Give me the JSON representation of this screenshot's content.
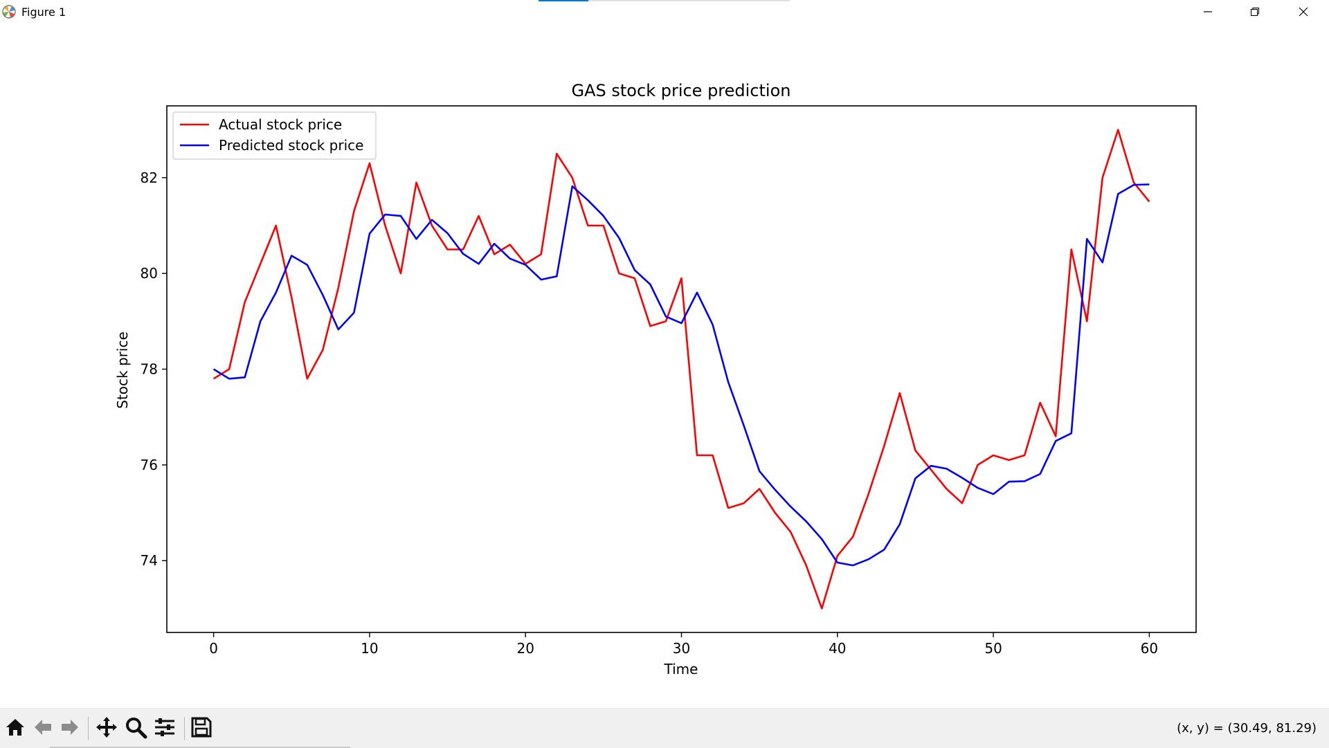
{
  "window": {
    "title": "Figure 1",
    "controls": {
      "minimize_icon": "minimize-icon",
      "maximize_icon": "restore-icon",
      "close_icon": "close-icon"
    }
  },
  "toolbar": {
    "icons": [
      "home-icon",
      "back-arrow-icon",
      "forward-arrow-icon",
      "pan-icon",
      "zoom-icon",
      "configure-subplots-icon",
      "save-icon"
    ],
    "coords_text": "(x, y) = (30.49, 81.29)"
  },
  "colors": {
    "actual": "#ff0000",
    "predicted": "#0000ff",
    "axis": "#000000",
    "toolbar_bg": "#f0f0f0"
  },
  "chart_data": {
    "type": "line",
    "title": "GAS stock price prediction",
    "xlabel": "Time",
    "ylabel": "Stock price",
    "xlim": [
      -3,
      63
    ],
    "ylim": [
      72.5,
      83.5
    ],
    "xticks": [
      0,
      10,
      20,
      30,
      40,
      50,
      60
    ],
    "yticks": [
      74,
      76,
      78,
      80,
      82
    ],
    "grid": false,
    "legend_position": "upper left",
    "series": [
      {
        "name": "Actual stock price",
        "color": "#ff0000",
        "x": [
          0,
          1,
          2,
          3,
          4,
          5,
          6,
          7,
          8,
          9,
          10,
          11,
          12,
          13,
          14,
          15,
          16,
          17,
          18,
          19,
          20,
          21,
          22,
          23,
          24,
          25,
          26,
          27,
          28,
          29,
          30,
          31,
          32,
          33,
          34,
          35,
          36,
          37,
          38,
          39,
          40,
          41,
          42,
          43,
          44,
          45,
          46,
          47,
          48,
          49,
          50,
          51,
          52,
          53,
          54,
          55,
          56,
          57,
          58,
          59,
          60
        ],
        "values": [
          77.8,
          78.0,
          79.4,
          80.2,
          81.0,
          79.5,
          77.8,
          78.4,
          79.7,
          81.3,
          82.3,
          81.0,
          80.0,
          81.9,
          81.0,
          80.5,
          80.5,
          81.2,
          80.4,
          80.6,
          80.2,
          80.4,
          82.5,
          82.0,
          81.0,
          81.0,
          80.0,
          79.9,
          78.9,
          79.0,
          79.9,
          76.2,
          76.2,
          75.1,
          75.2,
          75.5,
          75.0,
          74.6,
          73.9,
          73.0,
          74.1,
          74.5,
          75.4,
          76.4,
          77.5,
          76.3,
          75.9,
          75.5,
          75.2,
          76.0,
          76.2,
          76.1,
          76.2,
          77.3,
          76.6,
          80.5,
          79.0,
          82.0,
          83.0,
          81.9,
          81.5
        ]
      },
      {
        "name": "Predicted stock price",
        "color": "#0000ff",
        "x": [
          0,
          1,
          2,
          3,
          4,
          5,
          6,
          7,
          8,
          9,
          10,
          11,
          12,
          13,
          14,
          15,
          16,
          17,
          18,
          19,
          20,
          21,
          22,
          23,
          24,
          25,
          26,
          27,
          28,
          29,
          30,
          31,
          32,
          33,
          34,
          35,
          36,
          37,
          38,
          39,
          40,
          41,
          42,
          43,
          44,
          45,
          46,
          47,
          48,
          49,
          50,
          51,
          52,
          53,
          54,
          55,
          56,
          57,
          58,
          59,
          60
        ],
        "values": [
          78.0,
          77.8,
          77.83,
          79.0,
          79.6,
          80.37,
          80.18,
          79.55,
          78.83,
          79.18,
          80.83,
          81.23,
          81.2,
          80.72,
          81.12,
          80.84,
          80.41,
          80.2,
          80.62,
          80.31,
          80.18,
          79.87,
          79.94,
          81.82,
          81.53,
          81.2,
          80.74,
          80.07,
          79.77,
          79.1,
          78.96,
          79.6,
          78.93,
          77.73,
          76.82,
          75.87,
          75.48,
          75.13,
          74.82,
          74.45,
          73.96,
          73.9,
          74.03,
          74.23,
          74.76,
          75.72,
          75.98,
          75.92,
          75.73,
          75.52,
          75.39,
          75.65,
          75.66,
          75.81,
          76.5,
          76.66,
          80.72,
          80.23,
          81.66,
          81.85,
          81.86
        ]
      }
    ]
  }
}
